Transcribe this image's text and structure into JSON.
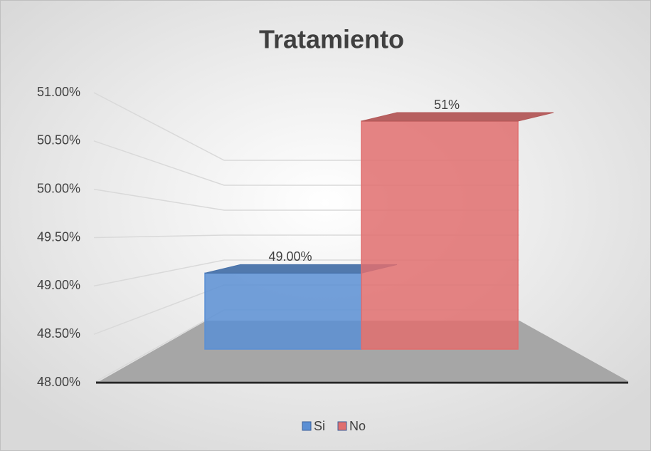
{
  "chart_data": {
    "type": "bar3d",
    "title": "Tratamiento",
    "categories": [
      null
    ],
    "series": [
      {
        "name": "Si",
        "color": "#5b8fd4",
        "values": [
          49
        ],
        "value_labels": [
          "49.00%"
        ]
      },
      {
        "name": "No",
        "color": "#e06f6f",
        "values": [
          51
        ],
        "value_labels": [
          "51%"
        ]
      }
    ],
    "ylim": [
      48,
      51
    ],
    "yticks": [
      {
        "value": 48,
        "label": "48.00%"
      },
      {
        "value": 48.5,
        "label": "48.50%"
      },
      {
        "value": 49,
        "label": "49.00%"
      },
      {
        "value": 49.5,
        "label": "49.50%"
      },
      {
        "value": 50,
        "label": "50.00%"
      },
      {
        "value": 50.5,
        "label": "50.50%"
      },
      {
        "value": 51,
        "label": "51.00%"
      }
    ],
    "grid": true,
    "legend": "bottom"
  }
}
